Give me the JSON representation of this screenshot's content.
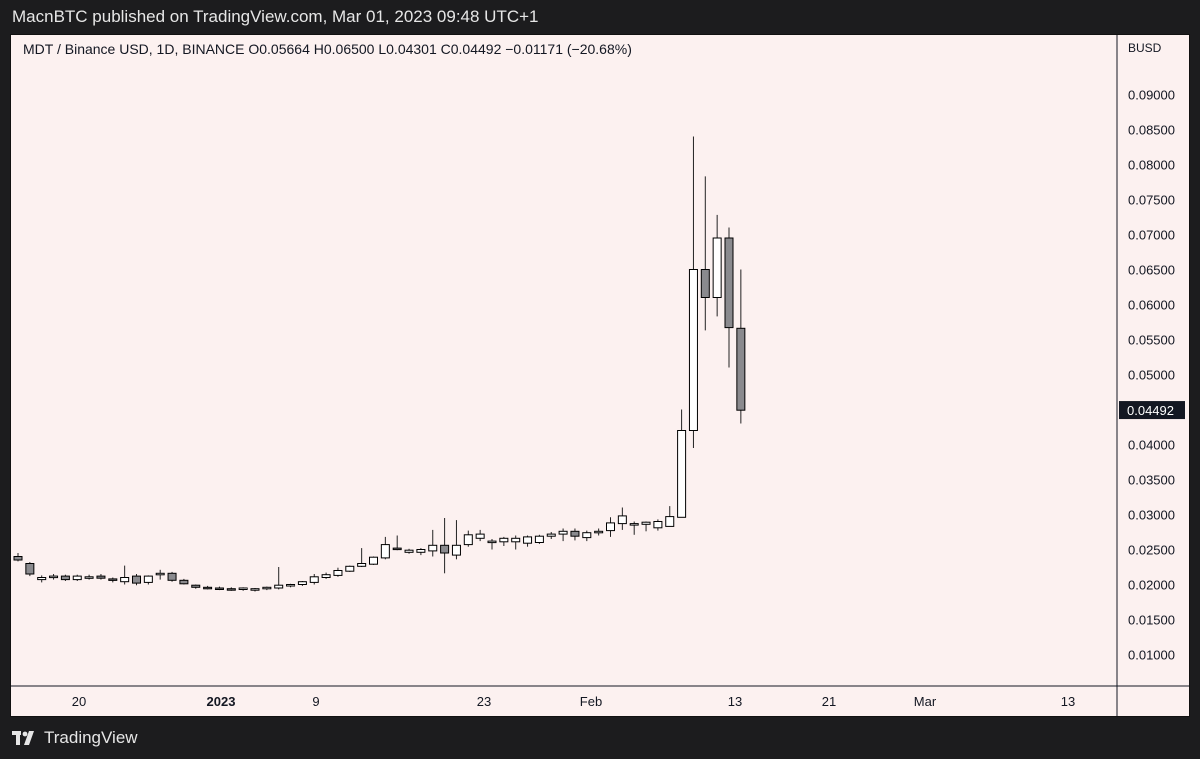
{
  "header": {
    "published_text": "MacnBTC published on TradingView.com, Mar 01, 2023 09:48 UTC+1"
  },
  "symbol_info": {
    "text": "MDT / Binance USD, 1D, BINANCE  O0.05664  H0.06500  L0.04301  C0.04492  −0.01171 (−20.68%)"
  },
  "price_axis": {
    "currency": "BUSD",
    "ticks": [
      "0.01000",
      "0.01500",
      "0.02000",
      "0.02500",
      "0.03000",
      "0.03500",
      "0.04000",
      "0.04500",
      "0.05000",
      "0.05500",
      "0.06000",
      "0.06500",
      "0.07000",
      "0.07500",
      "0.08000",
      "0.08500",
      "0.09000"
    ],
    "last_price_label": "0.04492"
  },
  "time_axis": {
    "ticks": [
      {
        "label": "20",
        "bold": false
      },
      {
        "label": "2023",
        "bold": true
      },
      {
        "label": "9",
        "bold": false
      },
      {
        "label": "23",
        "bold": false
      },
      {
        "label": "Feb",
        "bold": false
      },
      {
        "label": "13",
        "bold": false
      },
      {
        "label": "21",
        "bold": false
      },
      {
        "label": "Mar",
        "bold": false
      },
      {
        "label": "13",
        "bold": false
      }
    ]
  },
  "footer": {
    "brand": "TradingView",
    "logo_icon": "tradingview-logo-icon"
  },
  "colors": {
    "background_outer": "#1c1c1e",
    "chart_background": "#fcf1f0",
    "up_candle": "#ffffff",
    "down_candle": "#8a8a8e",
    "candle_border": "#000000",
    "last_price_tag": "#131722"
  },
  "chart_data": {
    "type": "candlestick",
    "title": "MDT / Binance USD, 1D, BINANCE",
    "ylim": [
      0.0055,
      0.0985
    ],
    "candles": [
      {
        "o": 0.024,
        "h": 0.0245,
        "l": 0.0233,
        "c": 0.0235
      },
      {
        "o": 0.023,
        "h": 0.0232,
        "l": 0.0212,
        "c": 0.0215
      },
      {
        "o": 0.0207,
        "h": 0.0213,
        "l": 0.0203,
        "c": 0.021
      },
      {
        "o": 0.021,
        "h": 0.0215,
        "l": 0.0207,
        "c": 0.0212
      },
      {
        "o": 0.0212,
        "h": 0.0214,
        "l": 0.0205,
        "c": 0.0207
      },
      {
        "o": 0.0207,
        "h": 0.0214,
        "l": 0.0205,
        "c": 0.0212
      },
      {
        "o": 0.021,
        "h": 0.0214,
        "l": 0.0207,
        "c": 0.0211
      },
      {
        "o": 0.0212,
        "h": 0.0215,
        "l": 0.0207,
        "c": 0.0209
      },
      {
        "o": 0.0208,
        "h": 0.021,
        "l": 0.0203,
        "c": 0.0206
      },
      {
        "o": 0.0204,
        "h": 0.0227,
        "l": 0.02,
        "c": 0.021
      },
      {
        "o": 0.0212,
        "h": 0.0215,
        "l": 0.0199,
        "c": 0.0202
      },
      {
        "o": 0.0203,
        "h": 0.0213,
        "l": 0.02,
        "c": 0.0212
      },
      {
        "o": 0.0214,
        "h": 0.0221,
        "l": 0.0207,
        "c": 0.0216
      },
      {
        "o": 0.0216,
        "h": 0.0218,
        "l": 0.0204,
        "c": 0.0206
      },
      {
        "o": 0.0206,
        "h": 0.0208,
        "l": 0.02,
        "c": 0.0201
      },
      {
        "o": 0.0199,
        "h": 0.02,
        "l": 0.0194,
        "c": 0.0196
      },
      {
        "o": 0.0196,
        "h": 0.0198,
        "l": 0.0193,
        "c": 0.0195
      },
      {
        "o": 0.0195,
        "h": 0.0197,
        "l": 0.0192,
        "c": 0.0194
      },
      {
        "o": 0.0194,
        "h": 0.0196,
        "l": 0.0191,
        "c": 0.0193
      },
      {
        "o": 0.0193,
        "h": 0.0196,
        "l": 0.0191,
        "c": 0.0195
      },
      {
        "o": 0.0193,
        "h": 0.0195,
        "l": 0.019,
        "c": 0.0194
      },
      {
        "o": 0.0194,
        "h": 0.0197,
        "l": 0.0192,
        "c": 0.0196
      },
      {
        "o": 0.0195,
        "h": 0.0225,
        "l": 0.0193,
        "c": 0.0199
      },
      {
        "o": 0.0199,
        "h": 0.0201,
        "l": 0.0196,
        "c": 0.02
      },
      {
        "o": 0.02,
        "h": 0.0205,
        "l": 0.0198,
        "c": 0.0204
      },
      {
        "o": 0.0203,
        "h": 0.0215,
        "l": 0.02,
        "c": 0.0211
      },
      {
        "o": 0.021,
        "h": 0.0217,
        "l": 0.0208,
        "c": 0.0214
      },
      {
        "o": 0.0213,
        "h": 0.0224,
        "l": 0.0211,
        "c": 0.022
      },
      {
        "o": 0.0219,
        "h": 0.0227,
        "l": 0.0218,
        "c": 0.0226
      },
      {
        "o": 0.0226,
        "h": 0.0252,
        "l": 0.0225,
        "c": 0.023
      },
      {
        "o": 0.0229,
        "h": 0.024,
        "l": 0.0228,
        "c": 0.0239
      },
      {
        "o": 0.0238,
        "h": 0.0268,
        "l": 0.0236,
        "c": 0.0257
      },
      {
        "o": 0.0252,
        "h": 0.027,
        "l": 0.0249,
        "c": 0.025
      },
      {
        "o": 0.0246,
        "h": 0.0251,
        "l": 0.0244,
        "c": 0.0249
      },
      {
        "o": 0.0246,
        "h": 0.0252,
        "l": 0.0242,
        "c": 0.025
      },
      {
        "o": 0.0248,
        "h": 0.0278,
        "l": 0.024,
        "c": 0.0256
      },
      {
        "o": 0.0256,
        "h": 0.0295,
        "l": 0.0216,
        "c": 0.0245
      },
      {
        "o": 0.0242,
        "h": 0.0292,
        "l": 0.0236,
        "c": 0.0256
      },
      {
        "o": 0.0257,
        "h": 0.0277,
        "l": 0.0254,
        "c": 0.0271
      },
      {
        "o": 0.0266,
        "h": 0.0278,
        "l": 0.0262,
        "c": 0.0272
      },
      {
        "o": 0.026,
        "h": 0.0265,
        "l": 0.025,
        "c": 0.0262
      },
      {
        "o": 0.0261,
        "h": 0.0268,
        "l": 0.0255,
        "c": 0.0266
      },
      {
        "o": 0.0261,
        "h": 0.027,
        "l": 0.025,
        "c": 0.0266
      },
      {
        "o": 0.0259,
        "h": 0.027,
        "l": 0.0254,
        "c": 0.0268
      },
      {
        "o": 0.026,
        "h": 0.0271,
        "l": 0.0258,
        "c": 0.0269
      },
      {
        "o": 0.0269,
        "h": 0.0275,
        "l": 0.0265,
        "c": 0.0272
      },
      {
        "o": 0.0272,
        "h": 0.028,
        "l": 0.0262,
        "c": 0.0276
      },
      {
        "o": 0.0276,
        "h": 0.028,
        "l": 0.0263,
        "c": 0.0269
      },
      {
        "o": 0.0267,
        "h": 0.0277,
        "l": 0.0262,
        "c": 0.0274
      },
      {
        "o": 0.0274,
        "h": 0.028,
        "l": 0.027,
        "c": 0.0276
      },
      {
        "o": 0.0277,
        "h": 0.0296,
        "l": 0.0268,
        "c": 0.0288
      },
      {
        "o": 0.0287,
        "h": 0.031,
        "l": 0.0278,
        "c": 0.0298
      },
      {
        "o": 0.0285,
        "h": 0.029,
        "l": 0.0271,
        "c": 0.0287
      },
      {
        "o": 0.0286,
        "h": 0.029,
        "l": 0.0276,
        "c": 0.0289
      },
      {
        "o": 0.0281,
        "h": 0.0293,
        "l": 0.0277,
        "c": 0.029
      },
      {
        "o": 0.0283,
        "h": 0.0312,
        "l": 0.0283,
        "c": 0.0297
      },
      {
        "o": 0.0296,
        "h": 0.045,
        "l": 0.0296,
        "c": 0.042
      },
      {
        "o": 0.042,
        "h": 0.084,
        "l": 0.0395,
        "c": 0.065
      },
      {
        "o": 0.065,
        "h": 0.0783,
        "l": 0.0563,
        "c": 0.061
      },
      {
        "o": 0.061,
        "h": 0.0728,
        "l": 0.0583,
        "c": 0.0695
      },
      {
        "o": 0.0695,
        "h": 0.071,
        "l": 0.051,
        "c": 0.0567
      },
      {
        "o": 0.0566,
        "h": 0.065,
        "l": 0.043,
        "c": 0.0449
      }
    ]
  }
}
